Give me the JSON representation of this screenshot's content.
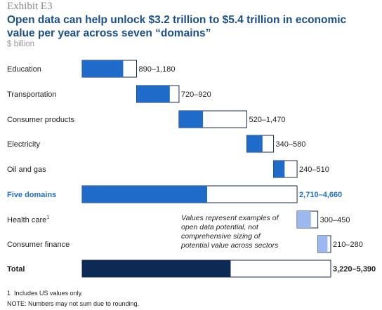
{
  "exhibit": "Exhibit E3",
  "title": "Open data can help unlock $3.2 trillion to $5.4 trillion in economic value per year across seven “domains”",
  "unit": "$ billion",
  "chart_data": {
    "type": "bar",
    "subtype": "waterfall-range",
    "categories": [
      "Education",
      "Transportation",
      "Consumer products",
      "Electricity",
      "Oil and gas",
      "Five domains",
      "Health care",
      "Consumer finance",
      "Total"
    ],
    "category_superscripts": [
      "",
      "",
      "",
      "",
      "",
      "",
      "1",
      "",
      ""
    ],
    "range_labels": [
      "890–1,180",
      "720–920",
      "520–1,470",
      "340–580",
      "240–510",
      "2,710–4,660",
      "300–450",
      "210–280",
      "3,220–5,390"
    ],
    "series": [
      {
        "name": "low",
        "values": [
          890,
          720,
          520,
          340,
          240,
          2710,
          300,
          210,
          3220
        ]
      },
      {
        "name": "high",
        "values": [
          1180,
          920,
          1470,
          580,
          510,
          4660,
          450,
          280,
          5390
        ]
      }
    ],
    "starts": [
      0,
      1180,
      2100,
      3570,
      4150,
      0,
      4660,
      5110,
      0
    ],
    "roles": [
      "domain",
      "domain",
      "domain",
      "domain",
      "domain",
      "subtotal",
      "domain2",
      "domain2",
      "total"
    ],
    "xlim": [
      0,
      5390
    ],
    "annotation": "Values represent examples of open data potential, not comprehensive sizing of potential value across sectors",
    "annotation_lines": [
      "Values represent examples of",
      "open data potential, not",
      "comprehensive sizing of",
      "potential value across sectors"
    ]
  },
  "colors": {
    "domain": "#1e6bc9",
    "subtotal": "#1e6bc9",
    "domain2": "#9db8ee",
    "total": "#0d2a57",
    "highlight_text": "#1f6fd0",
    "outline": "#1a2b4a"
  },
  "footnotes": {
    "note1_marker": "1",
    "note1": "Includes US values only.",
    "note2": "NOTE: Numbers may not sum due to rounding."
  }
}
